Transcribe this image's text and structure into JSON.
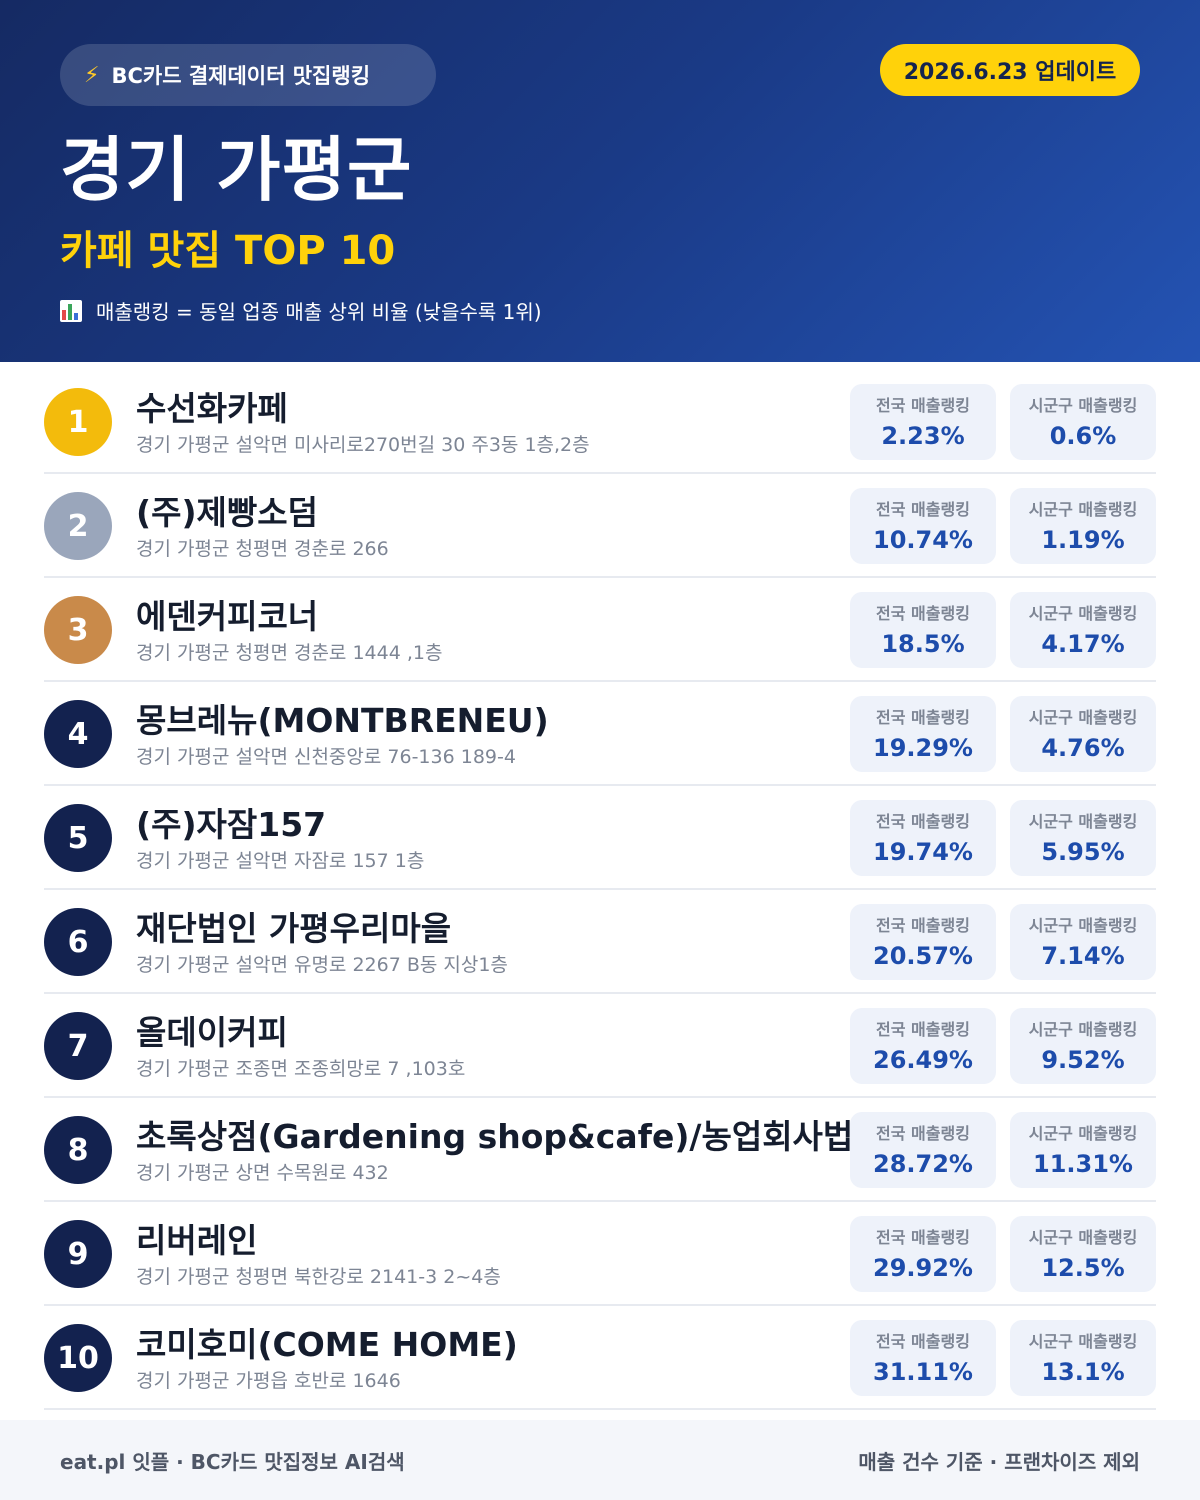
{
  "header": {
    "source_icon": "lightning-bolt-icon",
    "source_label": "BC카드 결제데이터 맛집랭킹",
    "update_label": "2026.6.23 업데이트",
    "region": "경기 가평군",
    "category": "카페 맛집 TOP 10",
    "legend_icon": "bar-chart-icon",
    "legend": "매출랭킹 = 동일 업종 매출 상위 비율 (낮을수록 1위)"
  },
  "labels": {
    "national": "전국 매출랭킹",
    "local": "시군구 매출랭킹"
  },
  "colors": {
    "header_bg": "#1a3a86",
    "accent_yellow": "#ffd20a",
    "rank_gold": "#f3bb0c",
    "rank_silver": "#9aa6bb",
    "rank_bronze": "#c98a4a",
    "rank_default": "#13224f",
    "value_blue": "#1d4cab"
  },
  "items": [
    {
      "rank": "1",
      "name": "수선화카페",
      "address": "경기 가평군 설악면 미사리로270번길 30 주3동 1층,2층",
      "national": "2.23%",
      "local": "0.6%"
    },
    {
      "rank": "2",
      "name": "(주)제빵소덤",
      "address": "경기 가평군 청평면 경춘로 266",
      "national": "10.74%",
      "local": "1.19%"
    },
    {
      "rank": "3",
      "name": "에덴커피코너",
      "address": "경기 가평군 청평면 경춘로 1444 ,1층",
      "national": "18.5%",
      "local": "4.17%"
    },
    {
      "rank": "4",
      "name": "몽브레뉴(MONTBRENEU)",
      "address": "경기 가평군 설악면 신천중앙로 76-136 189-4",
      "national": "19.29%",
      "local": "4.76%"
    },
    {
      "rank": "5",
      "name": "(주)자잠157",
      "address": "경기 가평군 설악면 자잠로 157 1층",
      "national": "19.74%",
      "local": "5.95%"
    },
    {
      "rank": "6",
      "name": "재단법인 가평우리마을",
      "address": "경기 가평군 설악면 유명로 2267 B동 지상1층",
      "national": "20.57%",
      "local": "7.14%"
    },
    {
      "rank": "7",
      "name": "올데이커피",
      "address": "경기 가평군 조종면 조종희망로 7 ,103호",
      "national": "26.49%",
      "local": "9.52%"
    },
    {
      "rank": "8",
      "name": "초록상점(Gardening shop&cafe)/농업회사법",
      "address": "경기 가평군 상면 수목원로 432",
      "national": "28.72%",
      "local": "11.31%"
    },
    {
      "rank": "9",
      "name": "리버레인",
      "address": "경기 가평군 청평면 북한강로 2141-3 2~4층",
      "national": "29.92%",
      "local": "12.5%"
    },
    {
      "rank": "10",
      "name": "코미호미(COME HOME)",
      "address": "경기 가평군 가평읍 호반로 1646",
      "national": "31.11%",
      "local": "13.1%"
    }
  ],
  "footer": {
    "left": "eat.pl 잇플 · BC카드 맛집정보 AI검색",
    "right": "매출 건수 기준 · 프랜차이즈 제외"
  }
}
